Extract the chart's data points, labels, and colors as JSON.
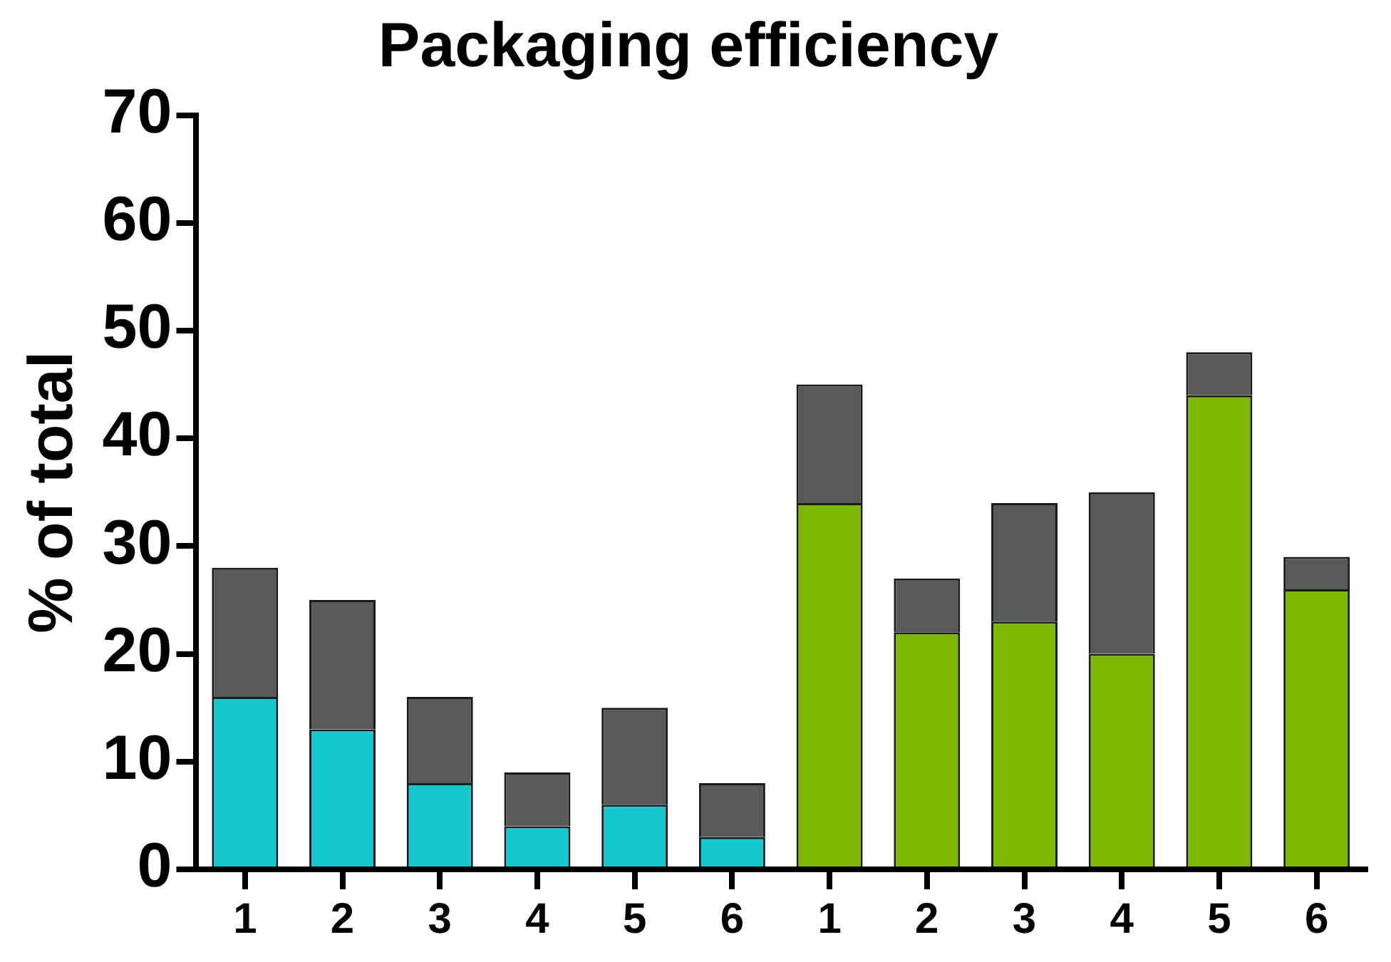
{
  "chart_data": {
    "type": "bar",
    "title": "Packaging efficiency",
    "ylabel": "% of total",
    "stacked": true,
    "categories": [
      "1",
      "2",
      "3",
      "4",
      "5",
      "6",
      "1",
      "2",
      "3",
      "4",
      "5",
      "6"
    ],
    "series": [
      {
        "colors": [
          "#13c8cf",
          "#13c8cf",
          "#13c8cf",
          "#13c8cf",
          "#13c8cf",
          "#13c8cf",
          "#7db800",
          "#7db800",
          "#7db800",
          "#7db800",
          "#7db800",
          "#7db800"
        ],
        "values": [
          16,
          13,
          8,
          4,
          6,
          3,
          34,
          22,
          23,
          20,
          44,
          26
        ]
      },
      {
        "color": "#595959",
        "values": [
          12,
          12,
          8,
          5,
          9,
          5,
          11,
          5,
          11,
          15,
          4,
          3
        ]
      }
    ],
    "ylim": [
      0,
      70
    ],
    "yticks": [
      0,
      10,
      20,
      30,
      40,
      50,
      60,
      70
    ],
    "legend": false
  }
}
